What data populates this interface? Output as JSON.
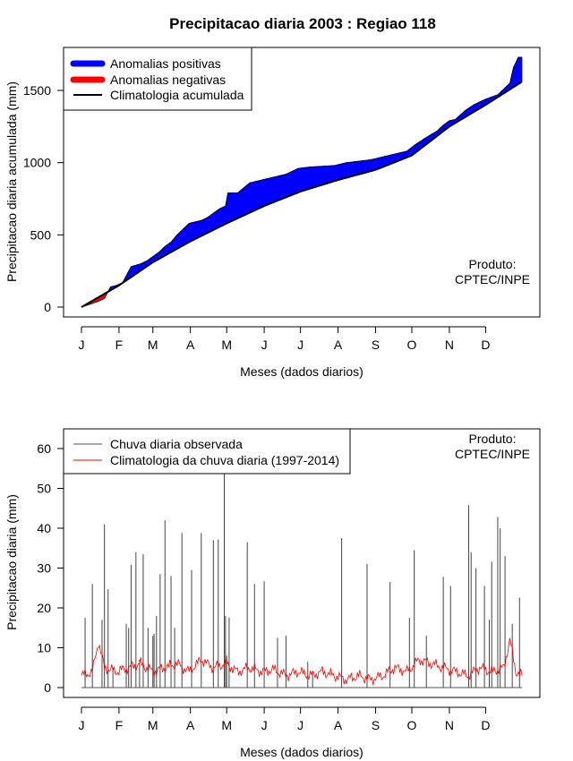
{
  "title": "Precipitacao diaria 2003 : Regiao 118",
  "chart_data": [
    {
      "type": "area",
      "ylabel": "Precipitacao diaria acumulada (mm)",
      "xlabel": "Meses (dados diarios)",
      "x_ticks": [
        "J",
        "F",
        "M",
        "A",
        "M",
        "J",
        "J",
        "A",
        "S",
        "O",
        "N",
        "D"
      ],
      "y_ticks": [
        0,
        500,
        1000,
        1500
      ],
      "xlim": [
        1,
        365
      ],
      "ylim": [
        -20,
        1750
      ],
      "legend": [
        {
          "label": "Anomalias positivas",
          "color": "#0000ff"
        },
        {
          "label": "Anomalias negativas",
          "color": "#ff0000"
        },
        {
          "label": "Climatologia acumulada",
          "color": "#000000"
        }
      ],
      "credit": [
        "Produto:",
        "CPTEC/INPE"
      ],
      "climatology_cumulative": {
        "day": [
          1,
          32,
          60,
          91,
          121,
          152,
          182,
          213,
          244,
          274,
          305,
          335,
          365
        ],
        "value": [
          0,
          150,
          310,
          455,
          580,
          700,
          800,
          880,
          950,
          1050,
          1250,
          1400,
          1560
        ]
      },
      "observed_cumulative": {
        "day": [
          1,
          15,
          20,
          25,
          30,
          35,
          42,
          50,
          55,
          60,
          65,
          70,
          75,
          80,
          85,
          90,
          95,
          100,
          105,
          110,
          115,
          120,
          122,
          130,
          140,
          150,
          160,
          170,
          180,
          190,
          200,
          210,
          220,
          240,
          260,
          270,
          276,
          285,
          295,
          300,
          305,
          310,
          318,
          325,
          335,
          345,
          355,
          358,
          362,
          365
        ],
        "value": [
          0,
          40,
          60,
          140,
          150,
          170,
          280,
          300,
          320,
          350,
          380,
          420,
          450,
          500,
          540,
          580,
          590,
          600,
          620,
          650,
          680,
          700,
          790,
          790,
          860,
          880,
          900,
          920,
          960,
          970,
          975,
          980,
          1000,
          1020,
          1060,
          1080,
          1120,
          1170,
          1220,
          1260,
          1290,
          1300,
          1360,
          1400,
          1440,
          1470,
          1550,
          1660,
          1730,
          1730
        ]
      }
    },
    {
      "type": "line",
      "ylabel": "Precipitacao diaria (mm)",
      "xlabel": "Meses (dados diarios)",
      "x_ticks": [
        "J",
        "F",
        "M",
        "A",
        "M",
        "J",
        "J",
        "A",
        "S",
        "O",
        "N",
        "D"
      ],
      "y_ticks": [
        0,
        10,
        20,
        30,
        40,
        50,
        60
      ],
      "xlim": [
        1,
        365
      ],
      "ylim": [
        -2,
        65
      ],
      "legend": [
        {
          "label": "Chuva diaria observada",
          "color": "#555555"
        },
        {
          "label": "Climatologia da chuva diaria (1997-2014)",
          "color": "#ff0000"
        }
      ],
      "credit": [
        "Produto:",
        "CPTEC/INPE"
      ],
      "observed_daily": {
        "day": [
          4,
          10,
          18,
          20,
          23,
          27,
          38,
          40,
          42,
          46,
          49,
          52,
          56,
          60,
          61,
          63,
          66,
          70,
          75,
          78,
          84,
          92,
          100,
          110,
          114,
          119,
          120,
          121,
          123,
          138,
          144,
          152,
          163,
          170,
          188,
          192,
          216,
          237,
          256,
          272,
          276,
          286,
          300,
          306,
          321,
          323,
          327,
          334,
          338,
          340,
          345,
          347,
          351,
          357,
          363
        ],
        "value": [
          17.5,
          26,
          17,
          41,
          24.7,
          5,
          16,
          15,
          30.8,
          34,
          7,
          33.5,
          15,
          13,
          13.5,
          18,
          28.5,
          42,
          28,
          15,
          38.8,
          29.5,
          38.8,
          37,
          37.2,
          54,
          18,
          8,
          17.6,
          36.5,
          26,
          26.7,
          12.5,
          13,
          6.5,
          4,
          37.5,
          31,
          26.5,
          17.5,
          34.5,
          13,
          27.8,
          25.5,
          45.8,
          34,
          30,
          25.5,
          17,
          31.6,
          42.8,
          40,
          33,
          16,
          22.6
        ]
      },
      "climatology_daily": {
        "day": [
          1,
          10,
          15,
          20,
          30,
          40,
          50,
          60,
          70,
          80,
          90,
          100,
          110,
          120,
          130,
          140,
          150,
          160,
          170,
          180,
          190,
          200,
          210,
          220,
          230,
          240,
          250,
          260,
          270,
          280,
          290,
          300,
          310,
          320,
          330,
          340,
          350,
          355,
          360,
          365
        ],
        "value": [
          3,
          4,
          11.5,
          5,
          4,
          5,
          6,
          4,
          5,
          6,
          4,
          7,
          5,
          6,
          4,
          5,
          4,
          4.5,
          3,
          4,
          3,
          4,
          3,
          2,
          3,
          2,
          3,
          5,
          4,
          7,
          6,
          5,
          4,
          3,
          5,
          4,
          5,
          12,
          4,
          3
        ]
      }
    }
  ]
}
